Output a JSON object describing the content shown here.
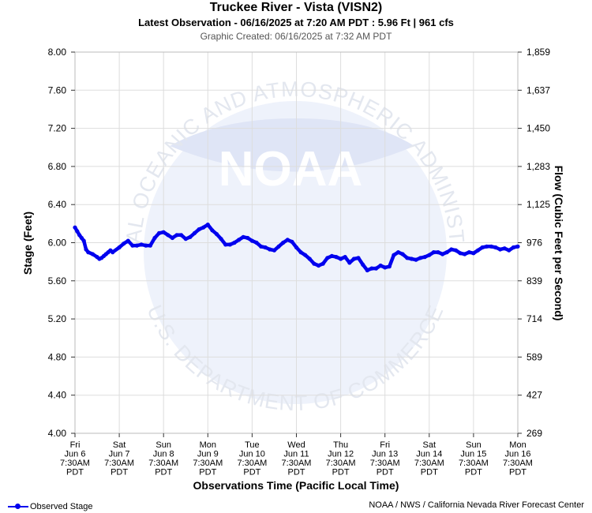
{
  "header": {
    "title": "Truckee River - Vista (VISN2)",
    "subtitle": "Latest Observation - 06/16/2025 at 7:20 AM PDT : 5.96 Ft | 961 cfs",
    "created": "Graphic Created: 06/16/2025 at 7:32 AM PDT"
  },
  "footer": {
    "legend_label": "Observed Stage",
    "credit": "NOAA / NWS / California Nevada River Forecast Center"
  },
  "watermark": {
    "arc_top": "NATIONAL OCEANIC AND ATMOSPHERIC ADMINISTRATION",
    "arc_bottom": "U.S. DEPARTMENT OF COMMERCE",
    "logo_text": "NOAA"
  },
  "colors": {
    "series": "#0000ee",
    "grid": "#dddddd",
    "watermark": "#eef2fb"
  },
  "chart_data": {
    "type": "line",
    "title": "Truckee River - Vista (VISN2)",
    "xlabel": "Observations Time (Pacific Local Time)",
    "ylabel": "Stage (Feet)",
    "y2label": "Flow (Cubic Feet per Second)",
    "ylim": [
      4.0,
      8.0
    ],
    "xlim": [
      0,
      10
    ],
    "grid": true,
    "legend": "bottom-left",
    "yticks": [
      "4.00",
      "4.40",
      "4.80",
      "5.20",
      "5.60",
      "6.00",
      "6.40",
      "6.80",
      "7.20",
      "7.60",
      "8.00"
    ],
    "y2ticks": [
      "269",
      "427",
      "589",
      "714",
      "839",
      "976",
      "1,125",
      "1,283",
      "1,450",
      "1,637",
      "1,859"
    ],
    "xticks": [
      [
        "Fri",
        "Jun 6",
        "7:30AM",
        "PDT"
      ],
      [
        "Sat",
        "Jun 7",
        "7:30AM",
        "PDT"
      ],
      [
        "Sun",
        "Jun 8",
        "7:30AM",
        "PDT"
      ],
      [
        "Mon",
        "Jun 9",
        "7:30AM",
        "PDT"
      ],
      [
        "Tue",
        "Jun 10",
        "7:30AM",
        "PDT"
      ],
      [
        "Wed",
        "Jun 11",
        "7:30AM",
        "PDT"
      ],
      [
        "Thu",
        "Jun 12",
        "7:30AM",
        "PDT"
      ],
      [
        "Fri",
        "Jun 13",
        "7:30AM",
        "PDT"
      ],
      [
        "Sat",
        "Jun 14",
        "7:30AM",
        "PDT"
      ],
      [
        "Sun",
        "Jun 15",
        "7:30AM",
        "PDT"
      ],
      [
        "Mon",
        "Jun 16",
        "7:30AM",
        "PDT"
      ]
    ],
    "series": [
      {
        "name": "Observed Stage",
        "x": [
          0,
          0.05,
          0.1,
          0.15,
          0.2,
          0.25,
          0.3,
          0.4,
          0.5,
          0.55,
          0.6,
          0.65,
          0.7,
          0.75,
          0.8,
          0.85,
          1.0,
          1.1,
          1.2,
          1.3,
          1.4,
          1.5,
          1.6,
          1.7,
          1.8,
          1.9,
          2.0,
          2.1,
          2.2,
          2.3,
          2.4,
          2.5,
          2.6,
          2.7,
          2.8,
          2.9,
          3.0,
          3.1,
          3.2,
          3.3,
          3.4,
          3.5,
          3.6,
          3.7,
          3.8,
          3.9,
          4.0,
          4.1,
          4.2,
          4.3,
          4.4,
          4.5,
          4.6,
          4.7,
          4.8,
          4.9,
          5.0,
          5.1,
          5.2,
          5.3,
          5.4,
          5.5,
          5.6,
          5.7,
          5.8,
          5.9,
          6.0,
          6.1,
          6.2,
          6.3,
          6.4,
          6.5,
          6.6,
          6.7,
          6.8,
          6.9,
          7.0,
          7.1,
          7.2,
          7.3,
          7.4,
          7.5,
          7.6,
          7.7,
          7.8,
          7.9,
          8.0,
          8.1,
          8.2,
          8.3,
          8.4,
          8.5,
          8.6,
          8.7,
          8.8,
          8.9,
          9.0,
          9.1,
          9.2,
          9.3,
          9.4,
          9.5,
          9.6,
          9.7,
          9.8,
          9.9,
          10.0
        ],
        "values": [
          6.16,
          6.12,
          6.08,
          6.05,
          6.02,
          5.93,
          5.9,
          5.88,
          5.85,
          5.83,
          5.84,
          5.86,
          5.88,
          5.9,
          5.92,
          5.9,
          5.95,
          5.99,
          6.02,
          5.97,
          5.97,
          5.98,
          5.97,
          5.97,
          6.05,
          6.1,
          6.11,
          6.08,
          6.05,
          6.08,
          6.08,
          6.04,
          6.06,
          6.1,
          6.14,
          6.16,
          6.19,
          6.13,
          6.09,
          6.04,
          5.98,
          5.98,
          6.0,
          6.03,
          6.06,
          6.05,
          6.02,
          6.0,
          5.96,
          5.95,
          5.93,
          5.92,
          5.96,
          6.0,
          6.03,
          6.01,
          5.95,
          5.9,
          5.87,
          5.83,
          5.78,
          5.76,
          5.78,
          5.84,
          5.86,
          5.85,
          5.83,
          5.85,
          5.79,
          5.83,
          5.84,
          5.77,
          5.71,
          5.73,
          5.73,
          5.76,
          5.74,
          5.75,
          5.87,
          5.9,
          5.88,
          5.84,
          5.83,
          5.82,
          5.84,
          5.85,
          5.87,
          5.9,
          5.9,
          5.88,
          5.9,
          5.93,
          5.92,
          5.89,
          5.88,
          5.9,
          5.89,
          5.92,
          5.95,
          5.96,
          5.96,
          5.95,
          5.93,
          5.94,
          5.92,
          5.95,
          5.96
        ]
      }
    ]
  }
}
